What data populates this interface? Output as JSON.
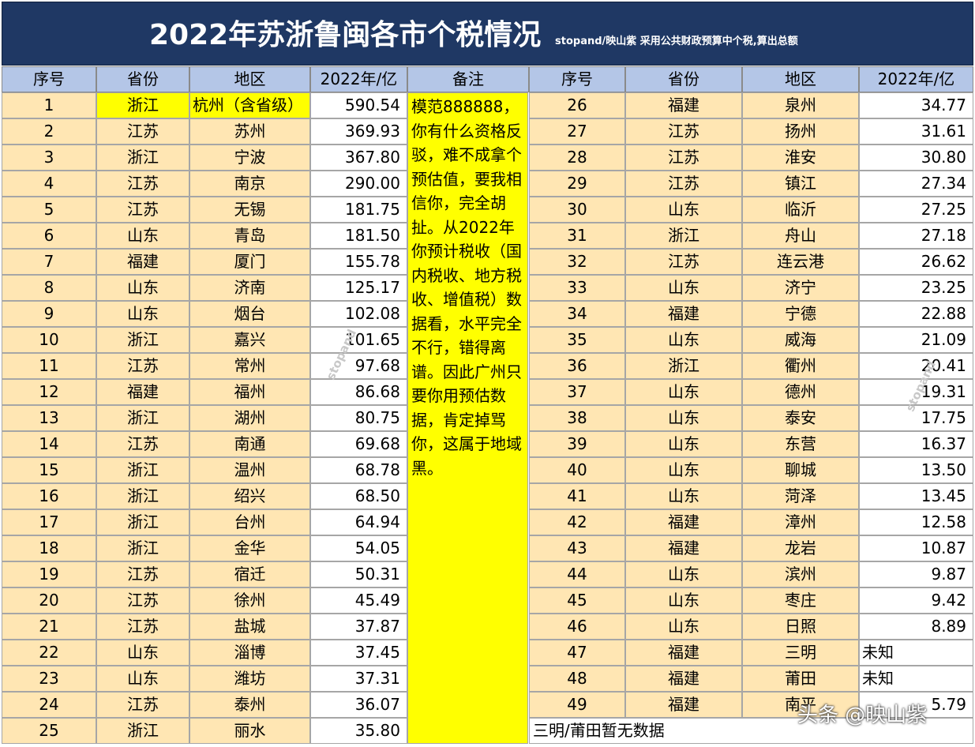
{
  "title": "2022年苏浙鲁闽各市个税情况",
  "subtitle": "stopand/映山紫  采用公共财政预算中个税,算出总额",
  "headers": {
    "seq": "序号",
    "province": "省份",
    "region": "地区",
    "value": "2022年/亿",
    "note": "备注"
  },
  "left_rows": [
    {
      "seq": "1",
      "province": "浙江",
      "region": "杭州（含省级）",
      "value": "590.54",
      "highlight": true
    },
    {
      "seq": "2",
      "province": "江苏",
      "region": "苏州",
      "value": "369.93"
    },
    {
      "seq": "3",
      "province": "浙江",
      "region": "宁波",
      "value": "367.80"
    },
    {
      "seq": "4",
      "province": "江苏",
      "region": "南京",
      "value": "290.00"
    },
    {
      "seq": "5",
      "province": "江苏",
      "region": "无锡",
      "value": "181.75"
    },
    {
      "seq": "6",
      "province": "山东",
      "region": "青岛",
      "value": "181.50"
    },
    {
      "seq": "7",
      "province": "福建",
      "region": "厦门",
      "value": "155.78"
    },
    {
      "seq": "8",
      "province": "山东",
      "region": "济南",
      "value": "125.17"
    },
    {
      "seq": "9",
      "province": "山东",
      "region": "烟台",
      "value": "102.08"
    },
    {
      "seq": "10",
      "province": "浙江",
      "region": "嘉兴",
      "value": "101.65"
    },
    {
      "seq": "11",
      "province": "江苏",
      "region": "常州",
      "value": "97.68"
    },
    {
      "seq": "12",
      "province": "福建",
      "region": "福州",
      "value": "86.68"
    },
    {
      "seq": "13",
      "province": "浙江",
      "region": "湖州",
      "value": "80.75"
    },
    {
      "seq": "14",
      "province": "江苏",
      "region": "南通",
      "value": "69.68"
    },
    {
      "seq": "15",
      "province": "浙江",
      "region": "温州",
      "value": "68.78"
    },
    {
      "seq": "16",
      "province": "浙江",
      "region": "绍兴",
      "value": "68.50"
    },
    {
      "seq": "17",
      "province": "浙江",
      "region": "台州",
      "value": "64.94"
    },
    {
      "seq": "18",
      "province": "浙江",
      "region": "金华",
      "value": "54.05"
    },
    {
      "seq": "19",
      "province": "江苏",
      "region": "宿迁",
      "value": "50.31"
    },
    {
      "seq": "20",
      "province": "江苏",
      "region": "徐州",
      "value": "45.49"
    },
    {
      "seq": "21",
      "province": "江苏",
      "region": "盐城",
      "value": "37.87"
    },
    {
      "seq": "22",
      "province": "山东",
      "region": "淄博",
      "value": "37.45"
    },
    {
      "seq": "23",
      "province": "山东",
      "region": "潍坊",
      "value": "37.31"
    },
    {
      "seq": "24",
      "province": "江苏",
      "region": "泰州",
      "value": "36.07"
    },
    {
      "seq": "25",
      "province": "浙江",
      "region": "丽水",
      "value": "35.80"
    }
  ],
  "right_rows": [
    {
      "seq": "26",
      "province": "福建",
      "region": "泉州",
      "value": "34.77"
    },
    {
      "seq": "27",
      "province": "江苏",
      "region": "扬州",
      "value": "31.61"
    },
    {
      "seq": "28",
      "province": "江苏",
      "region": "淮安",
      "value": "30.80"
    },
    {
      "seq": "29",
      "province": "江苏",
      "region": "镇江",
      "value": "27.34"
    },
    {
      "seq": "30",
      "province": "山东",
      "region": "临沂",
      "value": "27.25"
    },
    {
      "seq": "31",
      "province": "浙江",
      "region": "舟山",
      "value": "27.18"
    },
    {
      "seq": "32",
      "province": "江苏",
      "region": "连云港",
      "value": "26.62"
    },
    {
      "seq": "33",
      "province": "山东",
      "region": "济宁",
      "value": "23.25"
    },
    {
      "seq": "34",
      "province": "福建",
      "region": "宁德",
      "value": "22.88"
    },
    {
      "seq": "35",
      "province": "山东",
      "region": "威海",
      "value": "21.09"
    },
    {
      "seq": "36",
      "province": "浙江",
      "region": "衢州",
      "value": "20.41"
    },
    {
      "seq": "37",
      "province": "山东",
      "region": "德州",
      "value": "19.31"
    },
    {
      "seq": "38",
      "province": "山东",
      "region": "泰安",
      "value": "17.75"
    },
    {
      "seq": "39",
      "province": "山东",
      "region": "东营",
      "value": "16.37"
    },
    {
      "seq": "40",
      "province": "山东",
      "region": "聊城",
      "value": "13.50"
    },
    {
      "seq": "41",
      "province": "山东",
      "region": "菏泽",
      "value": "13.45"
    },
    {
      "seq": "42",
      "province": "福建",
      "region": "漳州",
      "value": "12.58"
    },
    {
      "seq": "43",
      "province": "福建",
      "region": "龙岩",
      "value": "10.87"
    },
    {
      "seq": "44",
      "province": "山东",
      "region": "滨州",
      "value": "9.87"
    },
    {
      "seq": "45",
      "province": "山东",
      "region": "枣庄",
      "value": "9.42"
    },
    {
      "seq": "46",
      "province": "山东",
      "region": "日照",
      "value": "8.89"
    },
    {
      "seq": "47",
      "province": "福建",
      "region": "三明",
      "value": "未知",
      "text_value": true
    },
    {
      "seq": "48",
      "province": "福建",
      "region": "莆田",
      "value": "未知",
      "text_value": true
    },
    {
      "seq": "49",
      "province": "福建",
      "region": "南平",
      "value": "5.79"
    }
  ],
  "note": "模范888888，你有什么资格反驳，难不成拿个预估值，要我相信你，完全胡扯。从2022年你预计税收（国内税收、地方税收、增值税）数据看，水平完全不行，错得离谱。因此广州只要你用预估数据，肯定掉骂你，这属于地域黑。",
  "footnote": "三明/莆田暂无数据",
  "watermark": "stopand",
  "corner_watermark": "头条 @映山紫",
  "colors": {
    "title_bg": "#1f3864",
    "header_bg": "#b4c6e7",
    "cell_peach": "#ffe6b3",
    "highlight": "#ffff00"
  }
}
